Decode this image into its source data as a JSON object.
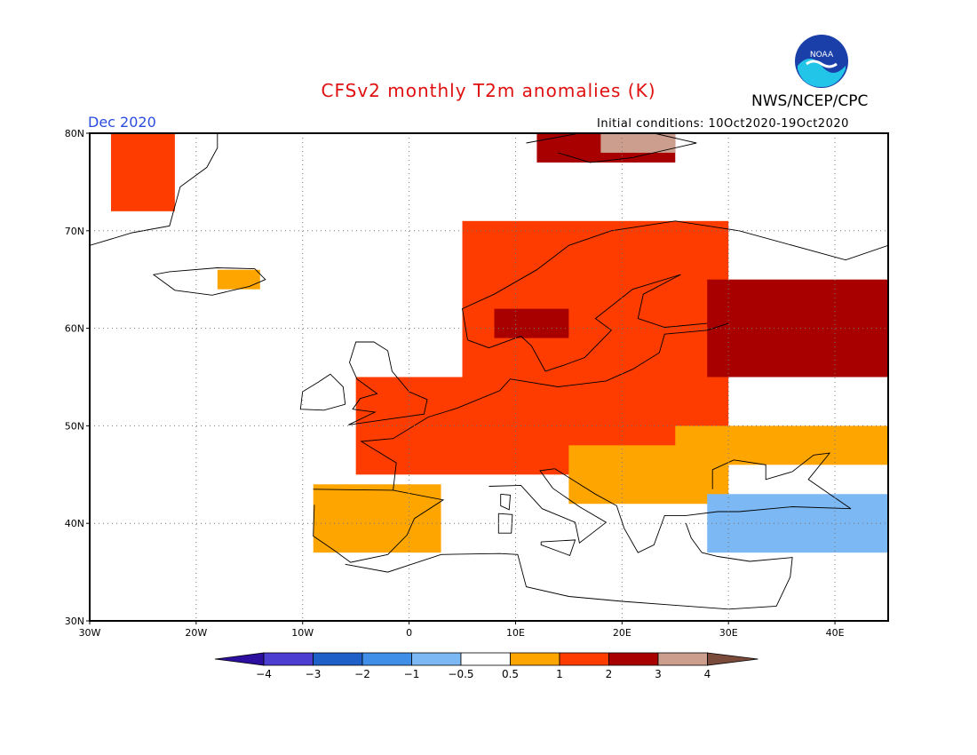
{
  "header": {
    "title": "CFSv2 monthly T2m anomalies (K)",
    "month": "Dec 2020",
    "initial_conditions": "Initial conditions: 10Oct2020-19Oct2020",
    "agency": "NWS/NCEP/CPC",
    "logo_text": "NOAA"
  },
  "axes": {
    "lat_labels": [
      "80N",
      "70N",
      "60N",
      "50N",
      "40N",
      "30N"
    ],
    "lon_labels": [
      "30W",
      "20W",
      "10W",
      "0",
      "10E",
      "20E",
      "30E",
      "40E"
    ]
  },
  "colorbar": {
    "labels": [
      "-4",
      "-3",
      "-2",
      "-1",
      "-0.5",
      "0.5",
      "1",
      "2",
      "3",
      "4"
    ],
    "colors": {
      "below_-4": "#2d0fa0",
      "-4_-3": "#4b3ed0",
      "-3_-2": "#1e60c8",
      "-2_-1": "#3f8ee8",
      "-1_-0.5": "#7cb8f4",
      "-0.5_0.5": "#ffffff",
      "0.5_1": "#ffa500",
      "1_2": "#ff3c00",
      "2_3": "#a80000",
      "3_4": "#cc9e8e",
      "above_4": "#7a4a3a"
    }
  },
  "chart_data": {
    "type": "heatmap",
    "variable": "T2m anomaly",
    "units": "K",
    "domain": {
      "lon": [
        -30,
        45
      ],
      "lat": [
        30,
        80
      ]
    },
    "lat_ticks": [
      80,
      70,
      60,
      50,
      40,
      30
    ],
    "lon_ticks": [
      -30,
      -20,
      -10,
      0,
      10,
      20,
      30,
      40
    ],
    "grid": true,
    "levels": [
      -4,
      -3,
      -2,
      -1,
      -0.5,
      0.5,
      1,
      2,
      3,
      4
    ],
    "anomaly_regions": [
      {
        "region": "Greenland east coast",
        "lon": [
          -28,
          -22
        ],
        "lat": [
          72,
          80
        ],
        "category": "1_2"
      },
      {
        "region": "Svalbard",
        "lon": [
          12,
          25
        ],
        "lat": [
          77,
          80
        ],
        "category": "2_3"
      },
      {
        "region": "Svalbard east",
        "lon": [
          18,
          25
        ],
        "lat": [
          78,
          80
        ],
        "category": "3_4"
      },
      {
        "region": "Iceland east",
        "lon": [
          -18,
          -14
        ],
        "lat": [
          64,
          66
        ],
        "category": "0.5_1"
      },
      {
        "region": "Scandinavia",
        "lon": [
          5,
          30
        ],
        "lat": [
          55,
          71
        ],
        "category": "1_2"
      },
      {
        "region": "Southern Norway",
        "lon": [
          8,
          15
        ],
        "lat": [
          59,
          62
        ],
        "category": "2_3"
      },
      {
        "region": "Northwest Russia",
        "lon": [
          28,
          45
        ],
        "lat": [
          55,
          65
        ],
        "category": "2_3"
      },
      {
        "region": "Central Europe",
        "lon": [
          -5,
          30
        ],
        "lat": [
          45,
          55
        ],
        "category": "1_2"
      },
      {
        "region": "Iberia",
        "lon": [
          -9,
          3
        ],
        "lat": [
          37,
          44
        ],
        "category": "0.5_1"
      },
      {
        "region": "Southeast Europe",
        "lon": [
          15,
          30
        ],
        "lat": [
          42,
          48
        ],
        "category": "0.5_1"
      },
      {
        "region": "Ukraine",
        "lon": [
          25,
          45
        ],
        "lat": [
          46,
          50
        ],
        "category": "0.5_1"
      },
      {
        "region": "Black Sea / Anatolia",
        "lon": [
          28,
          45
        ],
        "lat": [
          37,
          43
        ],
        "category": "-1_-0.5"
      }
    ]
  }
}
